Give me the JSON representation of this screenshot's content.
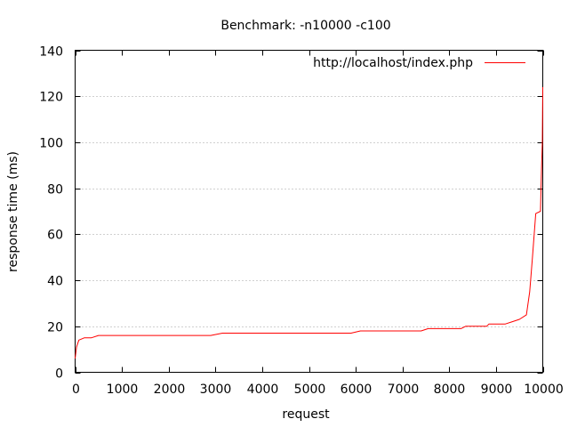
{
  "chart_data": {
    "type": "line",
    "title": "Benchmark: -n10000 -c100",
    "xlabel": "request",
    "ylabel": "response time (ms)",
    "xlim": [
      0,
      10000
    ],
    "ylim": [
      0,
      140
    ],
    "xticks": [
      0,
      1000,
      2000,
      3000,
      4000,
      5000,
      6000,
      7000,
      8000,
      9000,
      10000
    ],
    "yticks": [
      0,
      20,
      40,
      60,
      80,
      100,
      120,
      140
    ],
    "grid": "horizontal dotted",
    "legend_position": "top-right",
    "series": [
      {
        "name": "http://localhost/index.php",
        "color": "#ff0000",
        "points": [
          [
            0,
            6
          ],
          [
            30,
            11
          ],
          [
            80,
            14
          ],
          [
            200,
            15
          ],
          [
            350,
            15
          ],
          [
            500,
            16
          ],
          [
            1000,
            16
          ],
          [
            2000,
            16
          ],
          [
            2900,
            16
          ],
          [
            3150,
            17
          ],
          [
            4000,
            17
          ],
          [
            5000,
            17
          ],
          [
            5900,
            17
          ],
          [
            6100,
            18
          ],
          [
            7000,
            18
          ],
          [
            7400,
            18
          ],
          [
            7550,
            19
          ],
          [
            8000,
            19
          ],
          [
            8250,
            19
          ],
          [
            8350,
            20
          ],
          [
            8800,
            20
          ],
          [
            8850,
            21
          ],
          [
            9200,
            21
          ],
          [
            9350,
            22
          ],
          [
            9500,
            23
          ],
          [
            9650,
            25
          ],
          [
            9720,
            35
          ],
          [
            9780,
            50
          ],
          [
            9850,
            69
          ],
          [
            9950,
            70
          ],
          [
            9975,
            90
          ],
          [
            9990,
            100
          ],
          [
            10000,
            124
          ]
        ]
      }
    ]
  }
}
